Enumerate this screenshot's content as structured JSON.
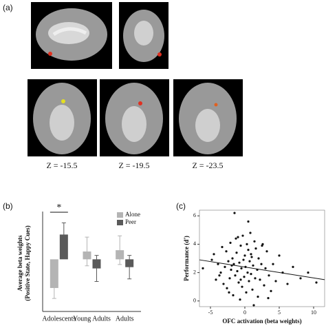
{
  "panel_a": {
    "label": "(a)",
    "z_labels": [
      "Z = -15.5",
      "Z = -19.5",
      "Z = -23.5"
    ]
  },
  "chart_data": [
    {
      "type": "bar",
      "panel_label": "(b)",
      "ylabel": [
        "Average beta weights",
        "(Positive State, Happy Cues)"
      ],
      "categories": [
        "Adolescents",
        "Young Adults",
        "Adults"
      ],
      "ylim": [
        -2,
        1.7
      ],
      "annotation": "*",
      "series": [
        {
          "name": "Alone",
          "color": "#b4b4b4",
          "values": [
            -1.1,
            0.3,
            0.35
          ],
          "errors": [
            0.4,
            0.55,
            0.55
          ]
        },
        {
          "name": "Peer",
          "color": "#5a5a5a",
          "values": [
            0.95,
            -0.35,
            -0.3
          ],
          "errors": [
            0.45,
            0.5,
            0.45
          ]
        }
      ]
    },
    {
      "type": "scatter",
      "panel_label": "(c)",
      "xlabel": "OFC activation (beta weights)",
      "ylabel": "Performance (d')",
      "xlim": [
        -6.6,
        11.6
      ],
      "ylim": [
        -0.4,
        6.4
      ],
      "xticks": [
        -5,
        0,
        5,
        10
      ],
      "yticks": [
        0,
        2,
        4,
        6
      ],
      "color": "#111111",
      "trendline": {
        "x": [
          -6.6,
          11.6
        ],
        "y": [
          2.9,
          1.5
        ]
      },
      "x": [
        -6.1,
        -4.8,
        -4.5,
        -4.2,
        -3.9,
        -3.5,
        -3.3,
        -3.1,
        -2.9,
        -2.7,
        -2.6,
        -2.4,
        -2.2,
        -2.1,
        -2.0,
        -1.8,
        -1.7,
        -1.6,
        -1.5,
        -1.4,
        -1.2,
        -1.1,
        -1.0,
        -0.9,
        -0.8,
        -0.7,
        -0.6,
        -0.5,
        -0.4,
        -0.3,
        -0.2,
        -0.1,
        0.0,
        0.1,
        0.2,
        0.3,
        0.4,
        0.5,
        0.6,
        0.7,
        0.8,
        0.9,
        1.0,
        1.1,
        1.2,
        1.4,
        1.5,
        1.6,
        1.8,
        1.9,
        2.0,
        2.2,
        2.4,
        2.6,
        2.8,
        3.0,
        3.2,
        3.5,
        3.8,
        4.1,
        4.5,
        5.0,
        5.5,
        6.2,
        7.0,
        8.1,
        9.2,
        10.4,
        -3.7,
        -2.3,
        -1.3,
        0.5,
        1.3,
        2.5,
        -0.6,
        -1.9,
        0.9,
        3.4
      ],
      "y": [
        2.3,
        2.9,
        3.3,
        1.5,
        2.6,
        2.0,
        3.8,
        1.2,
        2.4,
        3.5,
        0.9,
        2.8,
        1.6,
        4.1,
        2.2,
        3.0,
        0.4,
        2.6,
        6.2,
        1.8,
        3.4,
        2.1,
        4.5,
        1.3,
        2.7,
        0.1,
        3.9,
        2.3,
        1.0,
        4.6,
        2.9,
        1.7,
        3.2,
        2.4,
        0.6,
        4.0,
        2.0,
        3.6,
        1.4,
        2.8,
        4.8,
        1.9,
        3.1,
        0.8,
        2.5,
        4.2,
        1.6,
        3.7,
        2.2,
        0.3,
        3.0,
        1.5,
        2.6,
        4.0,
        1.1,
        2.3,
        3.5,
        1.8,
        0.7,
        2.6,
        1.4,
        3.2,
        2.0,
        1.2,
        2.4,
        1.6,
        2.0,
        1.3,
        1.8,
        0.6,
        4.4,
        5.6,
        -0.3,
        3.9,
        1.5,
        2.5,
        3.3,
        0.2
      ]
    }
  ]
}
